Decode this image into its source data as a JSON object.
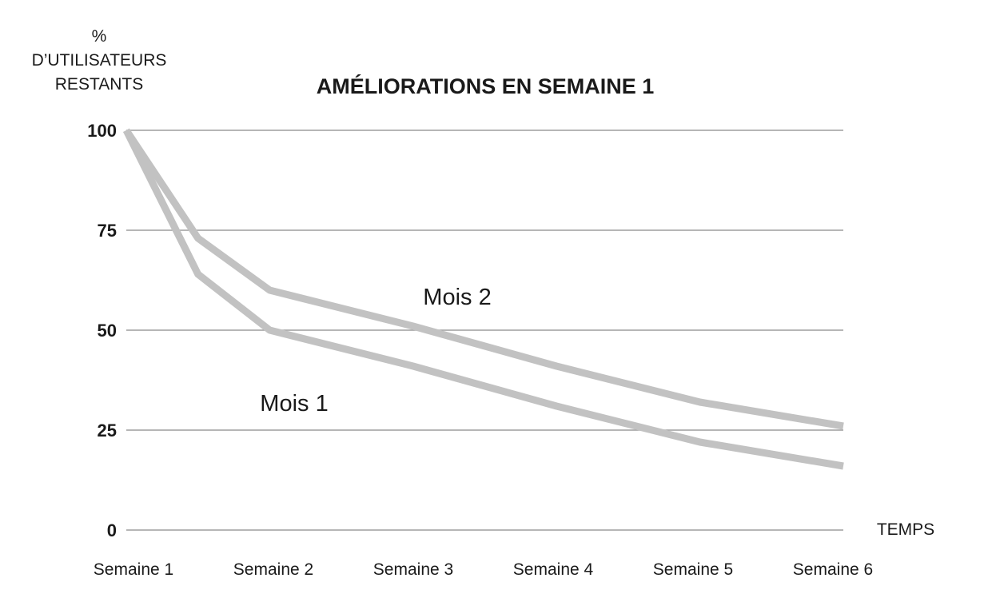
{
  "chart_data": {
    "type": "line",
    "title": "AMÉLIORATIONS EN SEMAINE 1",
    "ylabel_lines": [
      "%",
      "D’UTILISATEURS",
      "RESTANTS"
    ],
    "xlabel": "TEMPS",
    "categories": [
      "Semaine 1",
      "Semaine 2",
      "Semaine 3",
      "Semaine 4",
      "Semaine 5",
      "Semaine 6"
    ],
    "x": [
      1,
      1.5,
      2,
      3,
      4,
      5,
      6
    ],
    "yticks": [
      "100",
      "75",
      "50",
      "25",
      "0"
    ],
    "ytick_values": [
      100,
      75,
      50,
      25,
      0
    ],
    "ylim": [
      0,
      100
    ],
    "grid": true,
    "series": [
      {
        "name": "Mois 1",
        "values": [
          100,
          64,
          50,
          41,
          31,
          22,
          16
        ],
        "color": "#c2c2c2"
      },
      {
        "name": "Mois 2",
        "values": [
          100,
          73,
          60,
          51,
          41,
          32,
          26
        ],
        "color": "#c2c2c2"
      }
    ]
  }
}
